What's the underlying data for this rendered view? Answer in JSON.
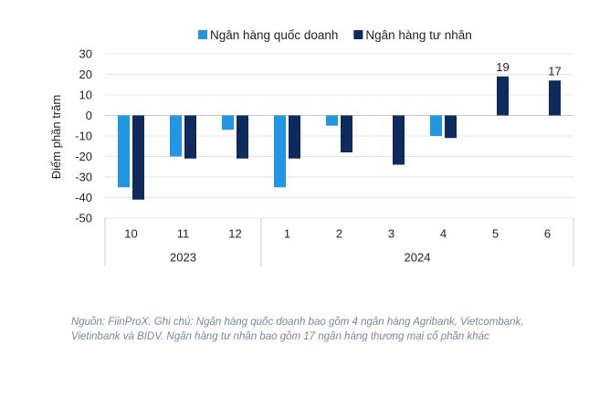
{
  "chart_data": {
    "type": "bar",
    "ylabel": "Điểm phần trăm",
    "ylim": [
      -50,
      30
    ],
    "yticks": [
      30,
      20,
      10,
      0,
      -10,
      -20,
      -30,
      -40,
      -50
    ],
    "grid": true,
    "legend_position": "top",
    "categories": [
      "10",
      "11",
      "12",
      "1",
      "2",
      "3",
      "4",
      "5",
      "6"
    ],
    "groups": [
      {
        "label": "2023",
        "categories": [
          "10",
          "11",
          "12"
        ]
      },
      {
        "label": "2024",
        "categories": [
          "1",
          "2",
          "3",
          "4",
          "5",
          "6"
        ]
      }
    ],
    "series": [
      {
        "name": "Ngân hàng quốc doanh",
        "color": "#2196e3",
        "values": [
          -35,
          -20,
          -7,
          -35,
          -5,
          null,
          -10,
          null,
          null
        ]
      },
      {
        "name": "Ngân hàng tư nhân",
        "color": "#0f2a5c",
        "values": [
          -41,
          -21,
          -21,
          -21,
          -18,
          -24,
          -11,
          19,
          17
        ]
      }
    ],
    "data_labels": [
      {
        "category": "5",
        "series": "Ngân hàng tư nhân",
        "text": "19"
      },
      {
        "category": "6",
        "series": "Ngân hàng tư nhân",
        "text": "17"
      }
    ]
  },
  "note": "Nguồn: FiinProX. Ghi chú: Ngân hàng quốc doanh bao gồm 4 ngân hàng Agribank, Vietcombank, Vietinbank và BIDV. Ngân hàng tư nhân bao gồm 17 ngân hàng thương mại cổ phần khác"
}
